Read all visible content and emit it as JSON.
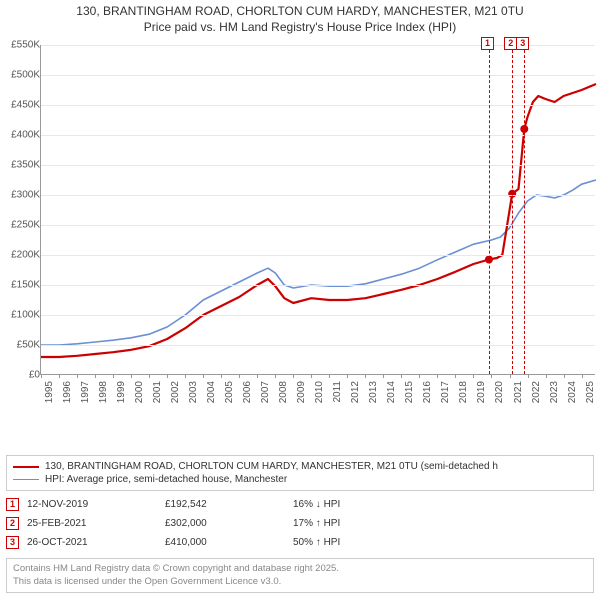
{
  "title_line1": "130, BRANTINGHAM ROAD, CHORLTON CUM HARDY, MANCHESTER, M21 0TU",
  "title_line2": "Price paid vs. HM Land Registry's House Price Index (HPI)",
  "chart": {
    "type": "line",
    "background_color": "#ffffff",
    "grid_color": "#e8e8e8",
    "axis_color": "#999999",
    "xlim": [
      1995,
      2025.8
    ],
    "ylim": [
      0,
      550
    ],
    "yticks": [
      0,
      50,
      100,
      150,
      200,
      250,
      300,
      350,
      400,
      450,
      500,
      550
    ],
    "ylabels": [
      "£0",
      "£50K",
      "£100K",
      "£150K",
      "£200K",
      "£250K",
      "£300K",
      "£350K",
      "£400K",
      "£450K",
      "£500K",
      "£550K"
    ],
    "xticks": [
      1995,
      1996,
      1997,
      1998,
      1999,
      2000,
      2001,
      2002,
      2003,
      2004,
      2005,
      2006,
      2007,
      2008,
      2009,
      2010,
      2011,
      2012,
      2013,
      2014,
      2015,
      2016,
      2017,
      2018,
      2019,
      2020,
      2021,
      2022,
      2023,
      2024,
      2025
    ],
    "series": [
      {
        "name": "price_paid",
        "label": "130, BRANTINGHAM ROAD, CHORLTON CUM HARDY, MANCHESTER, M21 0TU (semi-detached h",
        "color": "#cc0000",
        "line_width": 2.2,
        "points": [
          [
            1995,
            30
          ],
          [
            1996,
            30
          ],
          [
            1997,
            32
          ],
          [
            1998,
            35
          ],
          [
            1999,
            38
          ],
          [
            2000,
            42
          ],
          [
            2001,
            48
          ],
          [
            2002,
            60
          ],
          [
            2003,
            78
          ],
          [
            2004,
            100
          ],
          [
            2005,
            115
          ],
          [
            2006,
            130
          ],
          [
            2007,
            150
          ],
          [
            2007.6,
            160
          ],
          [
            2008,
            148
          ],
          [
            2008.5,
            128
          ],
          [
            2009,
            120
          ],
          [
            2010,
            128
          ],
          [
            2011,
            125
          ],
          [
            2012,
            125
          ],
          [
            2013,
            128
          ],
          [
            2014,
            135
          ],
          [
            2015,
            142
          ],
          [
            2016,
            150
          ],
          [
            2017,
            160
          ],
          [
            2018,
            172
          ],
          [
            2019,
            185
          ],
          [
            2019.86,
            192.5
          ],
          [
            2020.3,
            195
          ],
          [
            2020.6,
            200
          ],
          [
            2021.15,
            302
          ],
          [
            2021.5,
            310
          ],
          [
            2021.82,
            410
          ],
          [
            2022,
            430
          ],
          [
            2022.3,
            455
          ],
          [
            2022.6,
            465
          ],
          [
            2023,
            460
          ],
          [
            2023.5,
            455
          ],
          [
            2024,
            465
          ],
          [
            2024.5,
            470
          ],
          [
            2025,
            475
          ],
          [
            2025.4,
            480
          ],
          [
            2025.8,
            485
          ]
        ],
        "sale_markers": [
          {
            "x": 2019.86,
            "y": 192.5
          },
          {
            "x": 2021.15,
            "y": 302
          },
          {
            "x": 2021.82,
            "y": 410
          }
        ]
      },
      {
        "name": "hpi",
        "label": "HPI: Average price, semi-detached house, Manchester",
        "color": "#6a8fd4",
        "line_width": 1.6,
        "points": [
          [
            1995,
            50
          ],
          [
            1996,
            50
          ],
          [
            1997,
            52
          ],
          [
            1998,
            55
          ],
          [
            1999,
            58
          ],
          [
            2000,
            62
          ],
          [
            2001,
            68
          ],
          [
            2002,
            80
          ],
          [
            2003,
            100
          ],
          [
            2004,
            125
          ],
          [
            2005,
            140
          ],
          [
            2006,
            155
          ],
          [
            2007,
            170
          ],
          [
            2007.6,
            178
          ],
          [
            2008,
            170
          ],
          [
            2008.5,
            150
          ],
          [
            2009,
            145
          ],
          [
            2010,
            150
          ],
          [
            2011,
            148
          ],
          [
            2012,
            148
          ],
          [
            2013,
            152
          ],
          [
            2014,
            160
          ],
          [
            2015,
            168
          ],
          [
            2016,
            178
          ],
          [
            2017,
            192
          ],
          [
            2018,
            205
          ],
          [
            2019,
            218
          ],
          [
            2020,
            225
          ],
          [
            2020.5,
            230
          ],
          [
            2021,
            245
          ],
          [
            2021.5,
            270
          ],
          [
            2022,
            290
          ],
          [
            2022.5,
            300
          ],
          [
            2023,
            298
          ],
          [
            2023.5,
            295
          ],
          [
            2024,
            300
          ],
          [
            2024.5,
            308
          ],
          [
            2025,
            318
          ],
          [
            2025.8,
            325
          ]
        ]
      }
    ],
    "event_lines": [
      {
        "x": 2019.86,
        "color": "#cc0000",
        "label": "1"
      },
      {
        "x": 2021.15,
        "color": "#cc0000",
        "label": "2"
      },
      {
        "x": 2021.82,
        "color": "#cc0000",
        "label": "3"
      }
    ]
  },
  "sales": [
    {
      "n": "1",
      "date": "12-NOV-2019",
      "price": "£192,542",
      "diff": "16% ↓ HPI",
      "color": "#cc0000"
    },
    {
      "n": "2",
      "date": "25-FEB-2021",
      "price": "£302,000",
      "diff": "17% ↑ HPI",
      "color": "#cc0000"
    },
    {
      "n": "3",
      "date": "26-OCT-2021",
      "price": "£410,000",
      "diff": "50% ↑ HPI",
      "color": "#cc0000"
    }
  ],
  "footnote_line1": "Contains HM Land Registry data © Crown copyright and database right 2025.",
  "footnote_line2": "This data is licensed under the Open Government Licence v3.0."
}
